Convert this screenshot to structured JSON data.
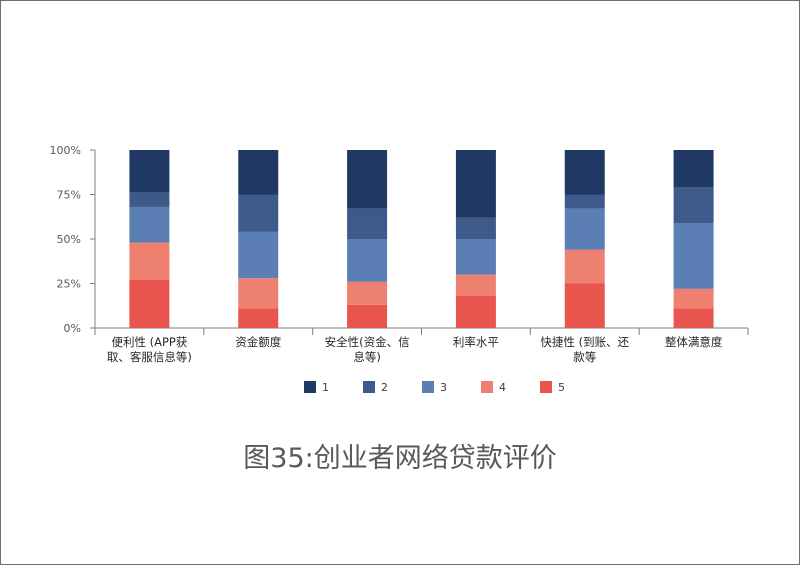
{
  "caption": "图35:创业者网络贷款评价",
  "chart_data": {
    "type": "bar",
    "stacked": "percent",
    "categories": [
      [
        "便利性 (APP获",
        "取、客服信息等)"
      ],
      [
        "资金额度"
      ],
      [
        "安全性(资金、信",
        "息等)"
      ],
      [
        "利率水平"
      ],
      [
        "快捷性 (到账、还",
        "款等"
      ],
      [
        "整体满意度"
      ]
    ],
    "series": [
      {
        "name": "1",
        "color": "#1f3864",
        "values": [
          24,
          25,
          33,
          38,
          25,
          21
        ]
      },
      {
        "name": "2",
        "color": "#3d5a8a",
        "values": [
          8,
          21,
          17,
          12,
          8,
          20
        ]
      },
      {
        "name": "3",
        "color": "#5b7fb4",
        "values": [
          20,
          26,
          24,
          20,
          23,
          37
        ]
      },
      {
        "name": "4",
        "color": "#ee8070",
        "values": [
          21,
          17,
          13,
          12,
          19,
          11
        ]
      },
      {
        "name": "5",
        "color": "#e8554e",
        "values": [
          27,
          11,
          13,
          18,
          25,
          11
        ]
      }
    ],
    "yticks": [
      "0%",
      "25%",
      "50%",
      "75%",
      "100%"
    ],
    "ylim": [
      0,
      100
    ],
    "legend_position": "bottom",
    "grid": false
  }
}
